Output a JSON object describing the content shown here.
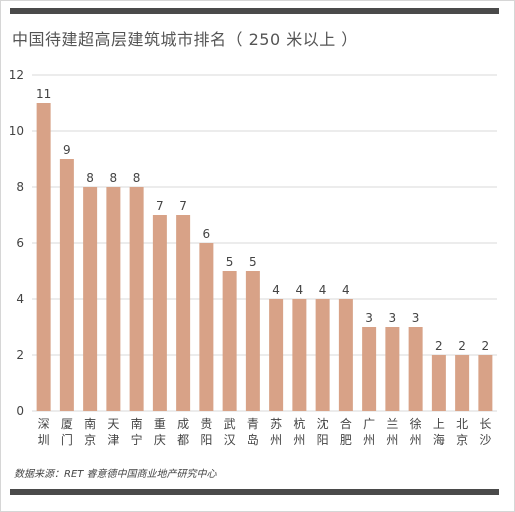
{
  "header": {
    "title": "中国待建超高层建筑城市排名（ 250 米以上 ）"
  },
  "footer": {
    "source": "数据来源：RET 睿意德中国商业地产研究中心"
  },
  "colors": {
    "bar": "#d8a287",
    "grid": "#d9d9d9",
    "rule": "#4a4a4a"
  },
  "chart_data": {
    "type": "bar",
    "title": "中国待建超高层建筑城市排名（ 250 米以上 ）",
    "xlabel": "",
    "ylabel": "",
    "ylim": [
      0,
      12
    ],
    "yticks": [
      0,
      2,
      4,
      6,
      8,
      10,
      12
    ],
    "grid": true,
    "categories": [
      "深圳",
      "厦门",
      "南京",
      "天津",
      "南宁",
      "重庆",
      "成都",
      "贵阳",
      "武汉",
      "青岛",
      "苏州",
      "杭州",
      "沈阳",
      "合肥",
      "广州",
      "兰州",
      "徐州",
      "上海",
      "北京",
      "长沙"
    ],
    "values": [
      11,
      9,
      8,
      8,
      8,
      7,
      7,
      6,
      5,
      5,
      4,
      4,
      4,
      4,
      3,
      3,
      3,
      2,
      2,
      2
    ]
  }
}
